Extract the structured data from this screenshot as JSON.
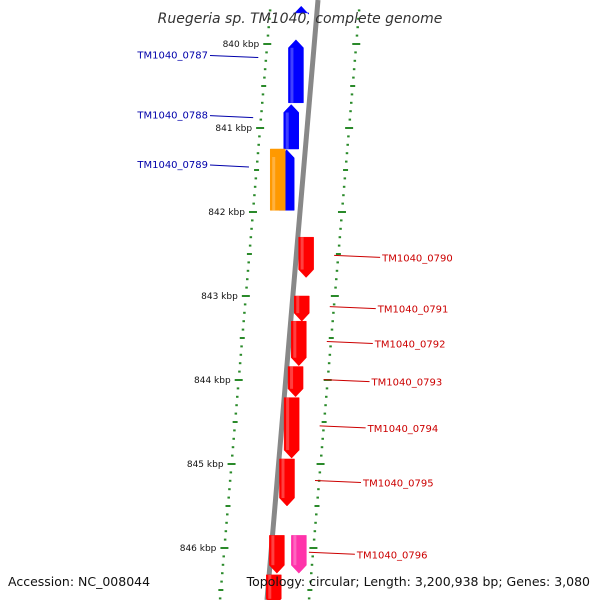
{
  "header": {
    "title": "Ruegeria sp. TM1040, complete genome"
  },
  "footer": {
    "accession": "Accession: NC_008044",
    "topology": "Topology: circular; Length: 3,200,938 bp; Genes: 3,080"
  },
  "colors": {
    "forward": "#0000ff",
    "reverse": "#ff0000",
    "orange": "#ff9900",
    "magenta": "#ff33aa",
    "tick": "#2a8a2a",
    "backbone": "#888888",
    "label_forward": "#0000aa",
    "label_reverse": "#cc0000"
  },
  "scale": {
    "kbp_start": 839.6,
    "kbp_end": 846.7,
    "markers": [
      {
        "label": "840 kbp",
        "kbp": 840
      },
      {
        "label": "841 kbp",
        "kbp": 841
      },
      {
        "label": "842 kbp",
        "kbp": 842
      },
      {
        "label": "843 kbp",
        "kbp": 843
      },
      {
        "label": "844 kbp",
        "kbp": 844
      },
      {
        "label": "845 kbp",
        "kbp": 845
      },
      {
        "label": "846 kbp",
        "kbp": 846
      }
    ]
  },
  "genes": [
    {
      "label": "",
      "strand": "+",
      "color": "forward",
      "start_kbp": 839.55,
      "end_kbp": 839.63
    },
    {
      "label": "TM1040_0787",
      "strand": "+",
      "color": "forward",
      "start_kbp": 840.7,
      "end_kbp": 839.95
    },
    {
      "label": "TM1040_0788",
      "strand": "+",
      "color": "forward",
      "start_kbp": 841.25,
      "end_kbp": 840.72
    },
    {
      "label": "TM1040_0789",
      "strand": "+",
      "color": "forward",
      "start_kbp": 841.98,
      "end_kbp": 841.26
    },
    {
      "label": "",
      "strand": "+",
      "color": "orange",
      "start_kbp": 841.25,
      "end_kbp": 841.98
    },
    {
      "label": "TM1040_0790",
      "strand": "-",
      "color": "reverse",
      "start_kbp": 842.3,
      "end_kbp": 842.78
    },
    {
      "label": "TM1040_0791",
      "strand": "-",
      "color": "reverse",
      "start_kbp": 843.0,
      "end_kbp": 843.3
    },
    {
      "label": "TM1040_0792",
      "strand": "-",
      "color": "reverse",
      "start_kbp": 843.3,
      "end_kbp": 843.83
    },
    {
      "label": "TM1040_0793",
      "strand": "-",
      "color": "reverse",
      "start_kbp": 843.84,
      "end_kbp": 844.2
    },
    {
      "label": "TM1040_0794",
      "strand": "-",
      "color": "reverse",
      "start_kbp": 844.21,
      "end_kbp": 844.93
    },
    {
      "label": "TM1040_0795",
      "strand": "-",
      "color": "reverse",
      "start_kbp": 844.94,
      "end_kbp": 845.5
    },
    {
      "label": "",
      "strand": "-",
      "color": "reverse",
      "start_kbp": 845.85,
      "end_kbp": 846.3
    },
    {
      "label": "TM1040_0796",
      "strand": "-",
      "color": "magenta",
      "start_kbp": 845.85,
      "end_kbp": 846.3
    },
    {
      "label": "",
      "strand": "-",
      "color": "reverse",
      "start_kbp": 846.32,
      "end_kbp": 846.7
    }
  ]
}
